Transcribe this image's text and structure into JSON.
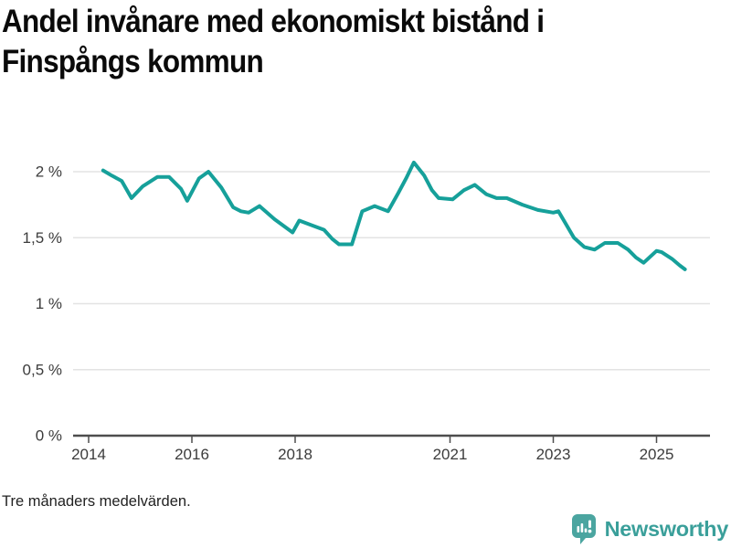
{
  "title": "Andel invånare med ekonomiskt bistånd i Finspångs kommun",
  "title_lines": [
    "Andel invånare med ekonomiskt bistånd i",
    "Finspångs kommun"
  ],
  "footnote": "Tre månaders medelvärden.",
  "branding": {
    "logo_text": "Newsworthy",
    "logo_icon": "newsworthy-speech-bubble-bar-chart-icon",
    "icon_color": "#4ba5a0",
    "text_color": "#3a9f9a"
  },
  "colors": {
    "line": "#16a09a",
    "grid": "#e3e3e3",
    "axis": "#4d4d4d",
    "tick_text": "#3c3c3c",
    "title_text": "#0a0a0a"
  },
  "chart_data": {
    "type": "line",
    "title": "Andel invånare med ekonomiskt bistånd i Finspångs kommun",
    "subtitle": "Tre månaders medelvärden.",
    "xlabel": "",
    "ylabel": "",
    "xlim": [
      2013.7,
      2026.0
    ],
    "ylim": [
      0,
      2.15
    ],
    "grid": "horizontal",
    "legend": "none",
    "x_axis": {
      "ticks": [
        {
          "value": 2014,
          "label": "2014"
        },
        {
          "value": 2016,
          "label": "2016"
        },
        {
          "value": 2018,
          "label": "2018"
        },
        {
          "value": 2021,
          "label": "2021"
        },
        {
          "value": 2023,
          "label": "2023"
        },
        {
          "value": 2025,
          "label": "2025"
        }
      ]
    },
    "y_axis": {
      "unit": "%",
      "ticks": [
        {
          "value": 2,
          "label": "2 %"
        },
        {
          "value": 1.5,
          "label": "1,5 %"
        },
        {
          "value": 1,
          "label": "1 %"
        },
        {
          "value": 0.5,
          "label": "0,5 %"
        },
        {
          "value": 0,
          "label": "0 %"
        }
      ]
    },
    "series": [
      {
        "name": "Andel invånare med ekonomiskt bistånd",
        "color": "#16a09a",
        "points": [
          [
            2014.28,
            2.01
          ],
          [
            2014.45,
            1.97
          ],
          [
            2014.64,
            1.93
          ],
          [
            2014.83,
            1.8
          ],
          [
            2015.05,
            1.89
          ],
          [
            2015.33,
            1.96
          ],
          [
            2015.56,
            1.96
          ],
          [
            2015.79,
            1.87
          ],
          [
            2015.91,
            1.78
          ],
          [
            2016.14,
            1.95
          ],
          [
            2016.32,
            2.0
          ],
          [
            2016.57,
            1.88
          ],
          [
            2016.8,
            1.73
          ],
          [
            2016.95,
            1.7
          ],
          [
            2017.1,
            1.69
          ],
          [
            2017.31,
            1.74
          ],
          [
            2017.6,
            1.64
          ],
          [
            2017.95,
            1.54
          ],
          [
            2018.08,
            1.63
          ],
          [
            2018.35,
            1.59
          ],
          [
            2018.56,
            1.56
          ],
          [
            2018.72,
            1.49
          ],
          [
            2018.85,
            1.45
          ],
          [
            2019.1,
            1.45
          ],
          [
            2019.3,
            1.7
          ],
          [
            2019.54,
            1.74
          ],
          [
            2019.8,
            1.7
          ],
          [
            2020.0,
            1.84
          ],
          [
            2020.15,
            1.95
          ],
          [
            2020.3,
            2.07
          ],
          [
            2020.5,
            1.97
          ],
          [
            2020.65,
            1.86
          ],
          [
            2020.78,
            1.8
          ],
          [
            2021.05,
            1.79
          ],
          [
            2021.27,
            1.86
          ],
          [
            2021.48,
            1.9
          ],
          [
            2021.7,
            1.83
          ],
          [
            2021.9,
            1.8
          ],
          [
            2022.1,
            1.8
          ],
          [
            2022.4,
            1.75
          ],
          [
            2022.7,
            1.71
          ],
          [
            2023.0,
            1.69
          ],
          [
            2023.1,
            1.7
          ],
          [
            2023.25,
            1.6
          ],
          [
            2023.4,
            1.5
          ],
          [
            2023.6,
            1.43
          ],
          [
            2023.8,
            1.41
          ],
          [
            2024.0,
            1.46
          ],
          [
            2024.25,
            1.46
          ],
          [
            2024.45,
            1.41
          ],
          [
            2024.6,
            1.35
          ],
          [
            2024.75,
            1.31
          ],
          [
            2025.0,
            1.4
          ],
          [
            2025.1,
            1.39
          ],
          [
            2025.3,
            1.34
          ],
          [
            2025.45,
            1.29
          ],
          [
            2025.55,
            1.26
          ]
        ]
      }
    ]
  }
}
